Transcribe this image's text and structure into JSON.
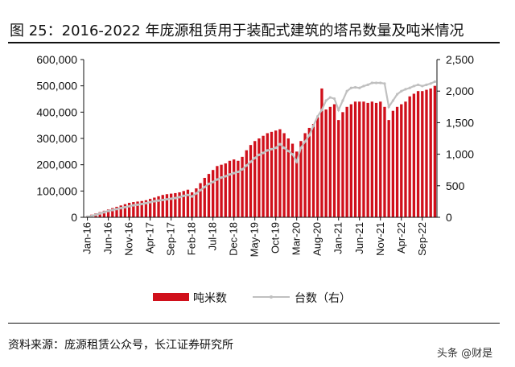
{
  "title": "图 25：2016-2022 年庞源租赁用于装配式建筑的塔吊数量及吨米情况",
  "source": "资料来源：庞源租赁公众号，长江证券研究所",
  "watermark": "头条 @财是",
  "chart_data": {
    "type": "bar+line",
    "title": "",
    "left_axis": {
      "ylim": [
        0,
        600000
      ],
      "ticks": [
        "0",
        "100,000",
        "200,000",
        "300,000",
        "400,000",
        "500,000",
        "600,000"
      ]
    },
    "right_axis": {
      "ylim": [
        0,
        2500
      ],
      "ticks": [
        "0",
        "500",
        "1,000",
        "1,500",
        "2,000",
        "2,500"
      ]
    },
    "x_tick_labels": [
      "Jan-16",
      "Jun-16",
      "Nov-16",
      "Apr-17",
      "Sep-17",
      "Feb-18",
      "Jul-18",
      "Dec-18",
      "May-19",
      "Oct-19",
      "Mar-20",
      "Aug-20",
      "Jan-21",
      "Jun-21",
      "Nov-21",
      "Apr-22",
      "Sep-22"
    ],
    "x_start": "Jan-16",
    "x_end": "Dec-22",
    "legend_placement": "bottom",
    "grid": false,
    "series": [
      {
        "name": "吨米数",
        "type": "bar",
        "axis": "left",
        "color": "#d0101b",
        "values": [
          5000,
          10000,
          15000,
          20000,
          25000,
          30000,
          35000,
          40000,
          45000,
          50000,
          55000,
          58000,
          60000,
          62000,
          65000,
          70000,
          75000,
          80000,
          85000,
          88000,
          90000,
          92000,
          95000,
          100000,
          105000,
          95000,
          110000,
          130000,
          150000,
          165000,
          180000,
          195000,
          200000,
          205000,
          215000,
          220000,
          215000,
          230000,
          255000,
          275000,
          290000,
          300000,
          310000,
          320000,
          325000,
          330000,
          335000,
          320000,
          300000,
          280000,
          250000,
          290000,
          320000,
          340000,
          355000,
          380000,
          490000,
          410000,
          420000,
          430000,
          370000,
          400000,
          420000,
          430000,
          440000,
          440000,
          440000,
          435000,
          440000,
          435000,
          440000,
          420000,
          370000,
          405000,
          420000,
          430000,
          440000,
          460000,
          470000,
          480000,
          480000,
          485000,
          490000,
          500000
        ]
      },
      {
        "name": "台数（右）",
        "type": "line",
        "axis": "right",
        "color": "#c0c0c0",
        "values": [
          10,
          20,
          40,
          60,
          80,
          100,
          115,
          130,
          145,
          160,
          175,
          190,
          200,
          210,
          225,
          240,
          255,
          265,
          275,
          285,
          295,
          305,
          320,
          340,
          355,
          330,
          380,
          430,
          480,
          530,
          560,
          600,
          630,
          650,
          680,
          700,
          720,
          760,
          820,
          880,
          940,
          990,
          1020,
          1060,
          1080,
          1100,
          1160,
          1100,
          1050,
          1000,
          880,
          1100,
          1200,
          1300,
          1450,
          1600,
          1700,
          1850,
          1900,
          1880,
          1700,
          1850,
          2000,
          2050,
          2060,
          2050,
          2080,
          2100,
          2130,
          2130,
          2130,
          2120,
          1750,
          1850,
          1950,
          2000,
          2030,
          2050,
          2080,
          2100,
          2080,
          2100,
          2120,
          2150
        ]
      }
    ]
  }
}
